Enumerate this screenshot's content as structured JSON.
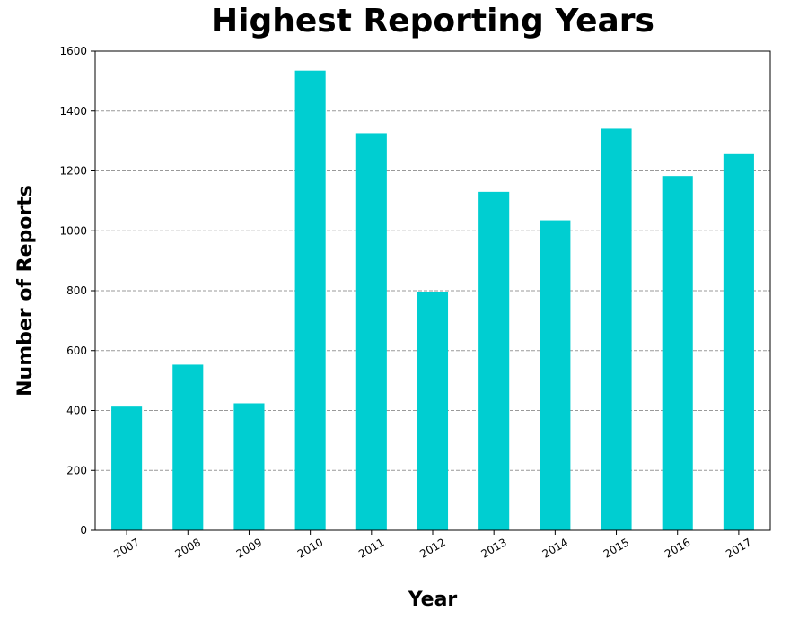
{
  "chart_data": {
    "type": "bar",
    "title": "Highest Reporting Years",
    "xlabel": "Year",
    "ylabel": "Number of Reports",
    "categories": [
      "2007",
      "2008",
      "2009",
      "2010",
      "2011",
      "2012",
      "2013",
      "2014",
      "2015",
      "2016",
      "2017"
    ],
    "values": [
      413,
      553,
      424,
      1535,
      1326,
      797,
      1130,
      1035,
      1341,
      1183,
      1256
    ],
    "ylim": [
      0,
      1600
    ],
    "yticks": [
      0,
      200,
      400,
      600,
      800,
      1000,
      1200,
      1400,
      1600
    ],
    "grid": "y-dashed",
    "bar_color": "#00CED1",
    "grid_color": "#999999"
  }
}
